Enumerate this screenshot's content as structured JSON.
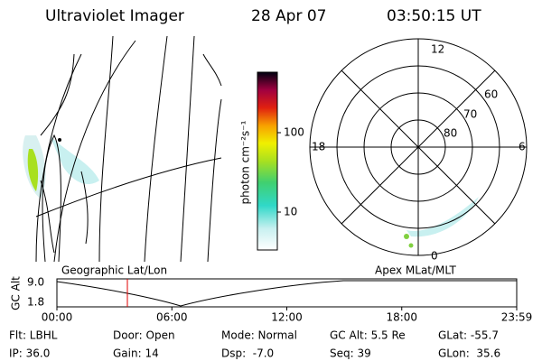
{
  "header": {
    "title": "Ultraviolet Imager",
    "date": "28 Apr 07",
    "time": "03:50:15 UT"
  },
  "colorbar": {
    "label": "photon cm⁻²s⁻¹",
    "ticks": [
      "100",
      "10"
    ]
  },
  "polar": {
    "mlt_labels": [
      "12",
      "18",
      "6",
      "0"
    ],
    "lat_labels": [
      "60",
      "70",
      "80"
    ]
  },
  "panels": {
    "left": "Geographic Lat/Lon",
    "right": "Apex MLat/MLT"
  },
  "timeline": {
    "ylabel": "GC Alt",
    "yticks": [
      "9.0",
      "1.8"
    ],
    "xticks": [
      "00:00",
      "06:00",
      "12:00",
      "18:00",
      "23:59"
    ]
  },
  "footer": {
    "rows": [
      [
        "Flt: LBHL",
        "Door: Open",
        "Mode: Normal",
        "GC Alt: 5.5 Re",
        "GLat: -55.7"
      ],
      [
        "IP: 36.0",
        "Gain: 14",
        "Dsp:  -7.0",
        "Seq: 39",
        "GLon:  35.6"
      ]
    ]
  }
}
